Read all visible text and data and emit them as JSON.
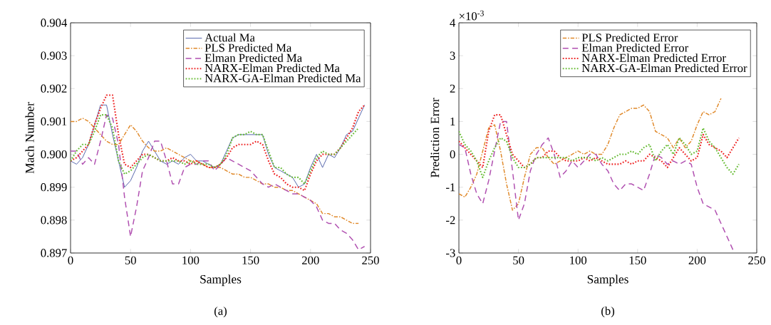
{
  "chart_data": [
    {
      "type": "line",
      "xlabel": "Samples",
      "ylabel": "Mach Number",
      "annotations": [
        "(a)"
      ],
      "legend": "top right",
      "xlim": [
        0,
        250
      ],
      "xticks": [
        0,
        50,
        100,
        150,
        200,
        250
      ],
      "ylim": [
        0.897,
        0.904
      ],
      "yticks": [
        0.897,
        0.898,
        0.899,
        {
          "value": 0.9,
          "label": "0.900"
        },
        0.901,
        0.902,
        0.903,
        0.904
      ],
      "x": [
        0,
        5,
        10,
        15,
        20,
        25,
        30,
        35,
        40,
        45,
        50,
        55,
        60,
        65,
        70,
        75,
        80,
        85,
        90,
        95,
        100,
        105,
        110,
        115,
        120,
        125,
        130,
        135,
        140,
        145,
        150,
        155,
        160,
        165,
        170,
        175,
        180,
        185,
        190,
        195,
        200,
        205,
        210,
        215,
        220,
        225,
        230,
        235,
        240,
        245
      ],
      "series": [
        {
          "name": "Actual Ma",
          "color": "#4f5fa8",
          "line_style": "solid",
          "values": [
            0.8998,
            0.8997,
            0.8999,
            0.9003,
            0.9009,
            0.9015,
            0.9015,
            0.9006,
            0.8998,
            0.899,
            0.8992,
            0.8996,
            0.9001,
            0.9004,
            0.9001,
            0.8998,
            0.8997,
            0.8998,
            0.8997,
            0.8999,
            0.9,
            0.8998,
            0.8998,
            0.8997,
            0.8996,
            0.8997,
            0.9001,
            0.9005,
            0.9006,
            0.9006,
            0.9006,
            0.9006,
            0.9006,
            0.9,
            0.8996,
            0.8995,
            0.8994,
            0.8993,
            0.899,
            0.8991,
            0.8996,
            0.9,
            0.8996,
            0.9,
            0.8999,
            0.9002,
            0.9006,
            0.9007,
            0.9011,
            0.9015
          ]
        },
        {
          "name": "PLS Predicted Ma",
          "color": "#e0892a",
          "line_style": "dashdot",
          "values": [
            0.901,
            0.901,
            0.9011,
            0.901,
            0.9008,
            0.9006,
            0.9004,
            0.9003,
            0.9003,
            0.9006,
            0.9009,
            0.9007,
            0.9004,
            0.9002,
            0.9001,
            0.9001,
            0.9002,
            0.9001,
            0.9,
            0.8999,
            0.8998,
            0.8998,
            0.8997,
            0.8996,
            0.8996,
            0.8996,
            0.8995,
            0.8994,
            0.8994,
            0.8993,
            0.8993,
            0.8992,
            0.8991,
            0.8991,
            0.899,
            0.899,
            0.8989,
            0.8989,
            0.8988,
            0.8987,
            0.8986,
            0.8985,
            0.8982,
            0.8982,
            0.8981,
            0.8981,
            0.898,
            0.8979,
            0.8979,
            null
          ]
        },
        {
          "name": "Elman Predicted Ma",
          "color": "#b04fb0",
          "line_style": "dashed",
          "values": [
            0.9001,
            0.9001,
            0.8997,
            0.8999,
            0.8997,
            0.9004,
            0.9012,
            0.9011,
            0.9003,
            0.8987,
            0.8975,
            0.8984,
            0.8995,
            0.8999,
            0.9004,
            0.9004,
            0.8998,
            0.8991,
            0.8991,
            0.8996,
            0.8997,
            0.8997,
            0.8998,
            0.8998,
            0.8995,
            0.8997,
            0.8999,
            0.8998,
            0.8997,
            0.8996,
            0.8995,
            0.8993,
            0.8991,
            0.899,
            0.8991,
            0.899,
            0.8989,
            0.8988,
            0.8988,
            0.8987,
            0.8986,
            0.8984,
            0.898,
            0.8979,
            0.8979,
            0.8977,
            0.8976,
            0.8974,
            0.8971,
            0.8972
          ]
        },
        {
          "name": "NARX-Elman Predicted Ma",
          "color": "#ee2222",
          "line_style": "dotted",
          "values": [
            0.8998,
            0.8999,
            0.9001,
            0.9003,
            0.9009,
            0.9014,
            0.9018,
            0.9018,
            0.9006,
            0.8997,
            0.8996,
            0.8998,
            0.9,
            0.9,
            0.8999,
            0.8998,
            0.8998,
            0.8999,
            0.8998,
            0.8998,
            0.8997,
            0.8998,
            0.8997,
            0.8996,
            0.8996,
            0.8997,
            0.8999,
            0.9002,
            0.9003,
            0.9003,
            0.9003,
            0.9004,
            0.9003,
            0.8998,
            0.8994,
            0.8993,
            0.8991,
            0.899,
            0.899,
            0.8989,
            0.8994,
            0.8998,
            0.9,
            0.9,
            0.9,
            0.9002,
            0.9005,
            0.9008,
            0.9013,
            0.9015
          ]
        },
        {
          "name": "NARX-GA-Elman Predicted Ma",
          "color": "#66bb33",
          "line_style": "dotted",
          "values": [
            0.8998,
            0.9001,
            0.9003,
            0.9003,
            0.9007,
            0.9012,
            0.9012,
            0.9008,
            0.8998,
            0.8994,
            0.8995,
            0.8997,
            0.8999,
            0.9,
            0.8999,
            0.8998,
            0.8998,
            0.8998,
            0.8998,
            0.8997,
            0.8998,
            0.8997,
            0.8997,
            0.8997,
            0.8996,
            0.8997,
            0.9,
            0.9005,
            0.9006,
            0.9006,
            0.9007,
            0.9006,
            0.9006,
            0.9001,
            0.8996,
            0.8996,
            0.8994,
            0.8993,
            0.8993,
            0.8991,
            0.8995,
            0.8999,
            0.9001,
            0.9,
            0.9,
            0.9002,
            0.9004,
            0.9006,
            0.9008,
            null
          ]
        }
      ]
    },
    {
      "type": "line",
      "xlabel": "Samples",
      "ylabel": "Prediction Error",
      "annotations": [
        "×10$^{-3}$",
        "(b)"
      ],
      "legend": "top right",
      "xlim": [
        0,
        250
      ],
      "xticks": [
        0,
        50,
        100,
        150,
        200,
        250
      ],
      "ylim": [
        -3,
        4
      ],
      "yticks": [
        -3,
        -2,
        -1,
        0,
        1,
        2,
        3,
        4
      ],
      "x": [
        0,
        5,
        10,
        15,
        20,
        25,
        30,
        35,
        40,
        45,
        50,
        55,
        60,
        65,
        70,
        75,
        80,
        85,
        90,
        95,
        100,
        105,
        110,
        115,
        120,
        125,
        130,
        135,
        140,
        145,
        150,
        155,
        160,
        165,
        170,
        175,
        180,
        185,
        190,
        195,
        200,
        205,
        210,
        215,
        220,
        225,
        230,
        235
      ],
      "series": [
        {
          "name": "PLS Predicted Error",
          "color": "#e0892a",
          "line_style": "dashdot",
          "values": [
            -1.2,
            -1.3,
            -1.0,
            -0.6,
            0.1,
            0.8,
            0.9,
            0.1,
            -0.9,
            -1.7,
            -1.5,
            -0.7,
            0.0,
            0.2,
            0.2,
            -0.1,
            -0.3,
            -0.2,
            -0.1,
            0.0,
            0.1,
            0.0,
            0.1,
            0.0,
            0.0,
            0.3,
            0.8,
            1.2,
            1.3,
            1.4,
            1.4,
            1.5,
            1.3,
            0.7,
            0.6,
            0.5,
            0.2,
            0.5,
            0.2,
            0.4,
            0.9,
            1.3,
            1.2,
            1.3,
            1.7,
            null,
            null,
            null
          ]
        },
        {
          "name": "Elman Predicted Error",
          "color": "#b04fb0",
          "line_style": "dashed",
          "values": [
            0.3,
            0.2,
            -0.6,
            -1.2,
            -1.5,
            -0.8,
            0.1,
            1.0,
            1.0,
            -0.5,
            -2.0,
            -1.5,
            -0.5,
            0.0,
            0.3,
            0.5,
            0.0,
            -0.7,
            -0.5,
            -0.2,
            -0.4,
            -0.2,
            0.0,
            0.0,
            -0.3,
            -0.5,
            -0.9,
            -1.1,
            -0.9,
            -0.9,
            -1.0,
            -1.1,
            -0.6,
            0.0,
            -0.1,
            -0.3,
            -0.2,
            -0.3,
            -0.2,
            -0.3,
            -1.0,
            -1.5,
            -1.6,
            -1.7,
            -2.1,
            -2.5,
            -2.9,
            null
          ]
        },
        {
          "name": "NARX-Elman Predicted Error",
          "color": "#ee2222",
          "line_style": "dotted",
          "values": [
            0.4,
            0.2,
            0.0,
            -0.2,
            -0.4,
            0.7,
            1.2,
            1.2,
            0.6,
            0.0,
            -0.2,
            -0.4,
            -0.3,
            -0.1,
            -0.1,
            0.1,
            0.1,
            -0.1,
            -0.2,
            -0.2,
            -0.2,
            -0.1,
            -0.2,
            -0.1,
            -0.2,
            -0.3,
            -0.3,
            -0.3,
            -0.2,
            -0.3,
            -0.2,
            -0.2,
            0.0,
            -0.1,
            -0.2,
            -0.4,
            -0.1,
            0.2,
            0.0,
            -0.2,
            -0.1,
            0.6,
            0.3,
            0.2,
            0.1,
            -0.1,
            0.2,
            0.5
          ]
        },
        {
          "name": "NARX-GA-Elman Predicted Error",
          "color": "#66bb33",
          "line_style": "dotted",
          "values": [
            0.7,
            0.3,
            0.1,
            -0.2,
            -0.7,
            -0.2,
            0.2,
            0.5,
            0.4,
            -0.1,
            -0.4,
            -0.4,
            -0.3,
            -0.1,
            -0.1,
            -0.1,
            -0.1,
            -0.1,
            -0.1,
            -0.2,
            -0.1,
            -0.1,
            -0.1,
            -0.2,
            -0.1,
            -0.2,
            -0.1,
            0.0,
            0.0,
            0.1,
            0.0,
            0.2,
            0.3,
            -0.2,
            0.1,
            0.3,
            0.0,
            0.5,
            0.3,
            0.0,
            0.1,
            0.8,
            0.4,
            0.2,
            -0.1,
            -0.4,
            -0.6,
            -0.3
          ]
        }
      ]
    }
  ]
}
